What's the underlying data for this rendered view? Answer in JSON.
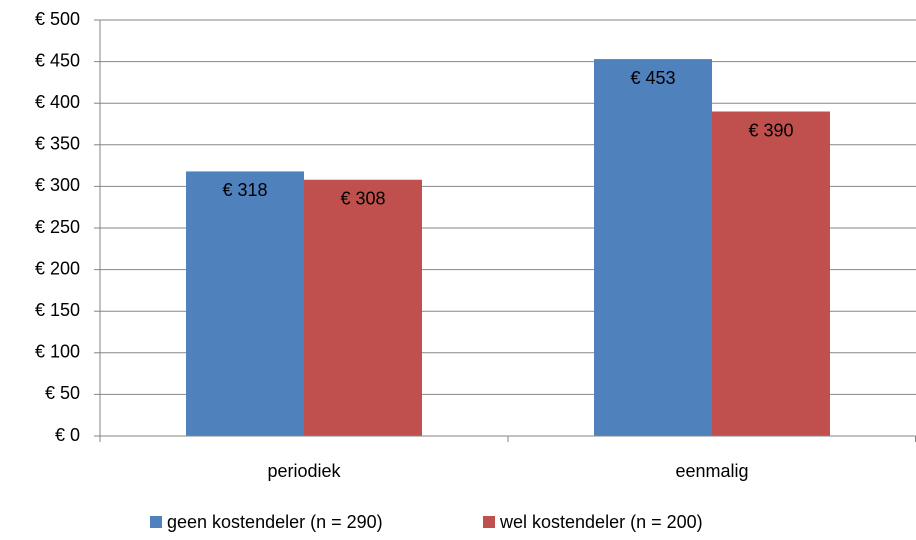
{
  "chart_data": {
    "type": "bar",
    "categories": [
      "periodiek",
      "eenmalig"
    ],
    "series": [
      {
        "name": "geen kostendeler (n = 290)",
        "color": "#4f81bd",
        "values": [
          318,
          453
        ],
        "value_labels": [
          "€ 318",
          "€ 453"
        ]
      },
      {
        "name": "wel kostendeler (n = 200)",
        "color": "#c0504d",
        "values": [
          308,
          390
        ],
        "value_labels": [
          "€ 308",
          "€ 390"
        ]
      }
    ],
    "ylim": [
      0,
      500
    ],
    "yticks": [
      {
        "value": 0,
        "label": "€ 0"
      },
      {
        "value": 50,
        "label": "€ 50"
      },
      {
        "value": 100,
        "label": "€ 100"
      },
      {
        "value": 150,
        "label": "€ 150"
      },
      {
        "value": 200,
        "label": "€ 200"
      },
      {
        "value": 250,
        "label": "€ 250"
      },
      {
        "value": 300,
        "label": "€ 300"
      },
      {
        "value": 350,
        "label": "€ 350"
      },
      {
        "value": 400,
        "label": "€ 400"
      },
      {
        "value": 450,
        "label": "€ 450"
      },
      {
        "value": 500,
        "label": "€ 500"
      }
    ],
    "grid": true,
    "legend": "bottom"
  }
}
